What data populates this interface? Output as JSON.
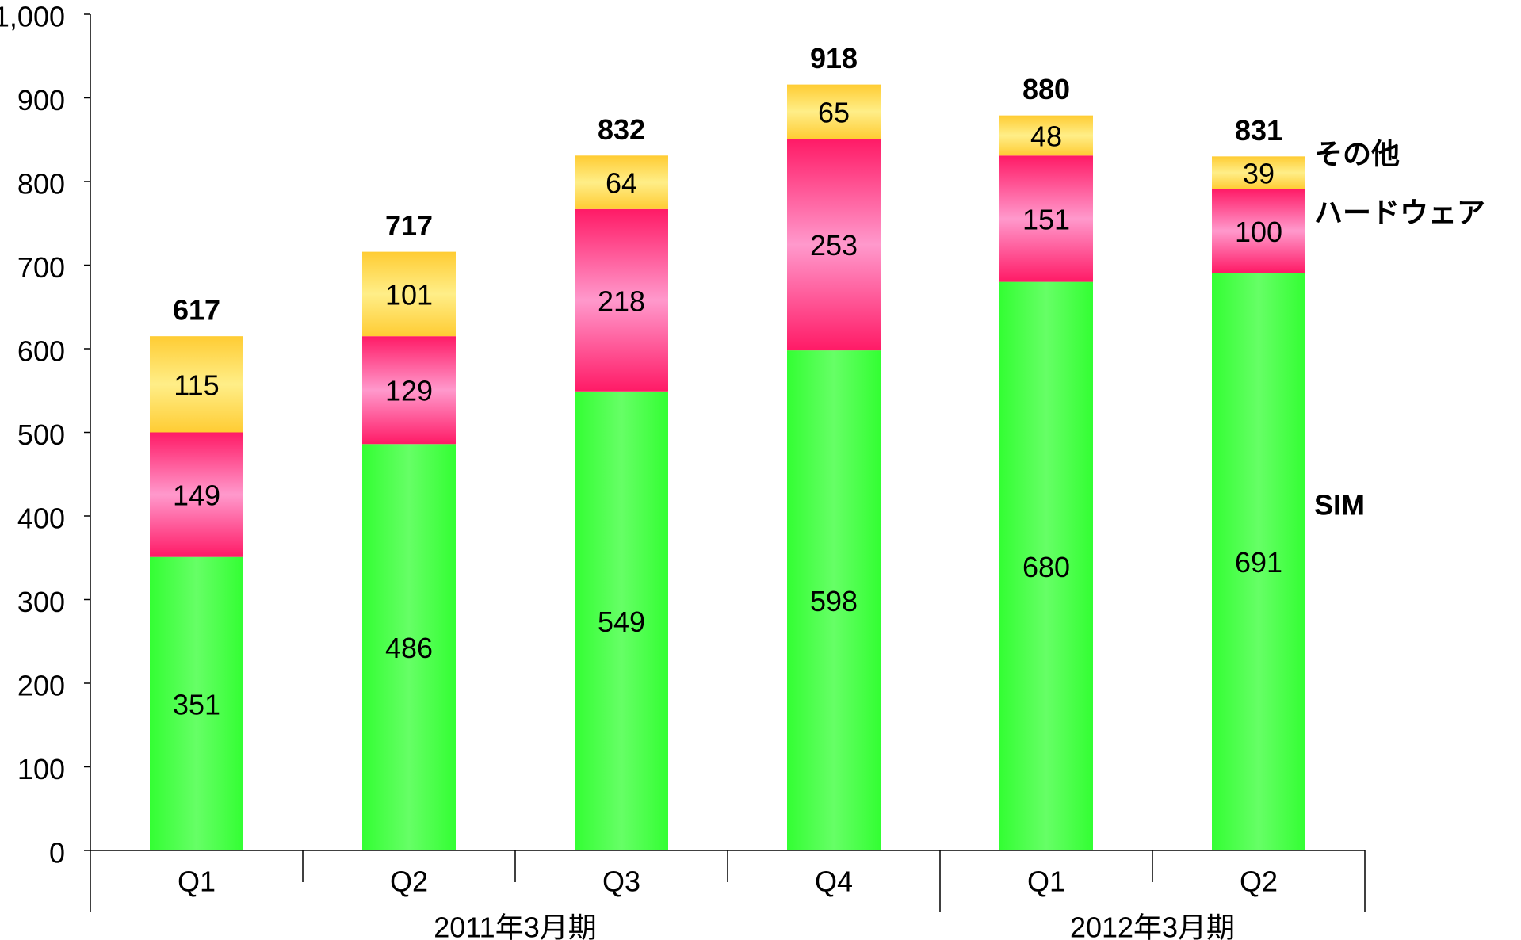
{
  "chart_data": {
    "type": "stacked_bar",
    "groups": [
      {
        "name": "2011年3月期",
        "categories": [
          "Q1",
          "Q2",
          "Q3",
          "Q4"
        ]
      },
      {
        "name": "2012年3月期",
        "categories": [
          "Q1",
          "Q2"
        ]
      }
    ],
    "series": [
      {
        "name": "SIM",
        "color": "#33ff33",
        "values": [
          351,
          486,
          549,
          598,
          680,
          691
        ]
      },
      {
        "name": "ハードウェア",
        "color": "#ff1a66",
        "values": [
          149,
          129,
          218,
          253,
          151,
          100
        ]
      },
      {
        "name": "その他",
        "color": "#ffcc33",
        "values": [
          115,
          101,
          64,
          65,
          48,
          39
        ]
      }
    ],
    "totals": [
      617,
      717,
      832,
      918,
      880,
      831
    ],
    "ylim": [
      0,
      1000
    ],
    "yticks": [
      0,
      100,
      200,
      300,
      400,
      500,
      600,
      700,
      800,
      900,
      {
        "value": 1000,
        "label": "1,000"
      }
    ],
    "grid": false
  }
}
